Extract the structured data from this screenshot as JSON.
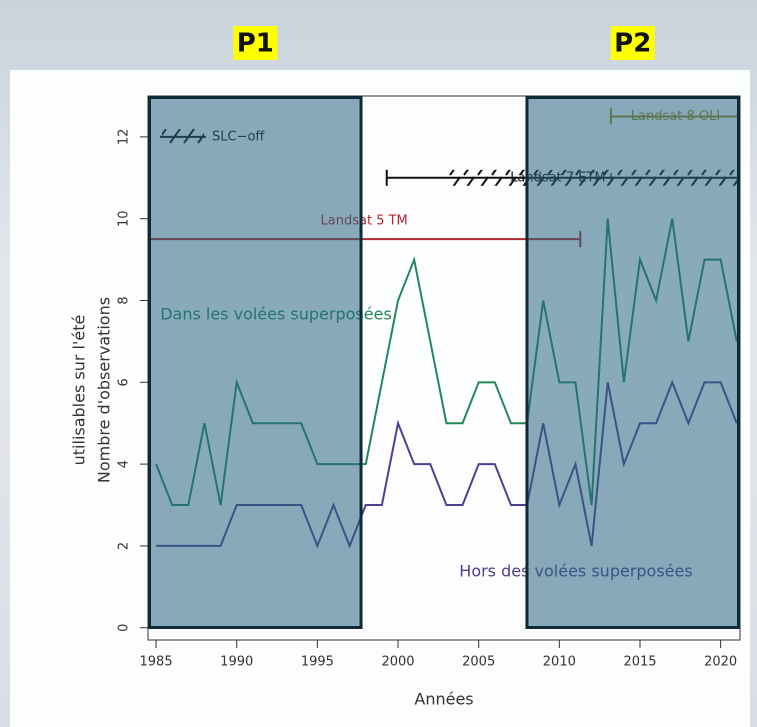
{
  "chart_data": {
    "type": "line",
    "y_label": [
      "Nombre d'observations",
      "utilisables sur l'été"
    ],
    "x_label": "Années",
    "x": [
      1985,
      1986,
      1987,
      1988,
      1989,
      1990,
      1991,
      1992,
      1993,
      1994,
      1995,
      1996,
      1997,
      1998,
      1999,
      2000,
      2001,
      2002,
      2003,
      2004,
      2005,
      2006,
      2007,
      2008,
      2009,
      2010,
      2011,
      2012,
      2013,
      2014,
      2015,
      2016,
      2017,
      2018,
      2019,
      2020,
      2021
    ],
    "series": [
      {
        "name": "Dans les volées superposées",
        "color": "#23875a",
        "values": [
          4,
          3,
          3,
          5,
          3,
          6,
          5,
          5,
          5,
          5,
          4,
          4,
          4,
          4,
          6,
          8,
          9,
          7,
          5,
          5,
          6,
          6,
          5,
          5,
          8,
          6,
          6,
          3,
          10,
          6,
          9,
          8,
          10,
          7,
          9,
          9,
          7
        ]
      },
      {
        "name": "Hors des volées superposées",
        "color": "#4f3f8f",
        "values": [
          2,
          2,
          2,
          2,
          2,
          3,
          3,
          3,
          3,
          3,
          2,
          3,
          2,
          3,
          3,
          5,
          4,
          4,
          3,
          3,
          4,
          4,
          3,
          3,
          5,
          3,
          4,
          2,
          6,
          4,
          5,
          5,
          6,
          5,
          6,
          6,
          5
        ]
      }
    ],
    "xlim": [
      1984.5,
      2021.2
    ],
    "xticks": [
      1985,
      1990,
      1995,
      2000,
      2005,
      2010,
      2015,
      2020
    ],
    "ylim": [
      -0.3,
      13
    ],
    "yticks": [
      0,
      2,
      4,
      6,
      8,
      10,
      12
    ],
    "sensors": [
      {
        "name": "Landsat 5 TM",
        "color": "#b3262e",
        "start": 1984,
        "end": 2011.3,
        "level": 9.5
      },
      {
        "name": "Landsat 7 ETM+",
        "color": "#111111",
        "start": 1999.3,
        "end": 2021.2,
        "level": 11
      },
      {
        "name": "Landsat 8 OLI",
        "color": "#a08a1e",
        "start": 2013.2,
        "end": 2021.2,
        "level": 12.5
      }
    ],
    "slc_off_label": "SLC−off",
    "slc_off_start": 2003,
    "periods": [
      {
        "label": "P1",
        "start": 1984.5,
        "end": 1997.8
      },
      {
        "label": "P2",
        "start": 2007.9,
        "end": 2021.2
      }
    ]
  }
}
